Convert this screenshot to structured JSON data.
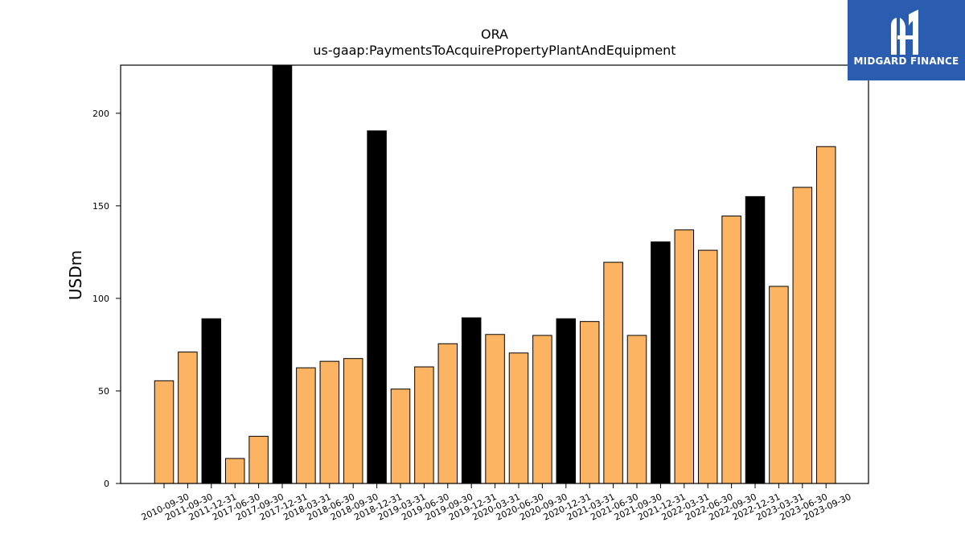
{
  "chart_data": {
    "type": "bar",
    "title": "ORA",
    "subtitle": "us-gaap:PaymentsToAcquirePropertyPlantAndEquipment",
    "xlabel": "",
    "ylabel": "USDm",
    "ylim": [
      0,
      226
    ],
    "yticks": [
      0,
      50,
      100,
      150,
      200
    ],
    "grid": false,
    "categories": [
      "2010-09-30",
      "2011-09-30",
      "2011-12-31",
      "2017-06-30",
      "2017-09-30",
      "2017-12-31",
      "2018-03-31",
      "2018-06-30",
      "2018-09-30",
      "2018-12-31",
      "2019-03-31",
      "2019-06-30",
      "2019-09-30",
      "2019-12-31",
      "2020-03-31",
      "2020-06-30",
      "2020-09-30",
      "2020-12-31",
      "2021-03-31",
      "2021-06-30",
      "2021-09-30",
      "2021-12-31",
      "2022-03-31",
      "2022-06-30",
      "2022-09-30",
      "2022-12-31",
      "2023-03-31",
      "2023-06-30",
      "2023-09-30"
    ],
    "values": [
      55.5,
      71,
      89,
      13.5,
      25.5,
      226,
      62.5,
      66,
      67.5,
      190.5,
      51,
      63,
      75.5,
      89.5,
      80.5,
      70.5,
      80,
      89,
      87.5,
      119.5,
      80,
      130.5,
      137,
      126,
      144.5,
      155,
      106.5,
      160,
      182
    ],
    "colors": [
      "#fdb462",
      "#fdb462",
      "#000000",
      "#fdb462",
      "#fdb462",
      "#000000",
      "#fdb462",
      "#fdb462",
      "#fdb462",
      "#000000",
      "#fdb462",
      "#fdb462",
      "#fdb462",
      "#000000",
      "#fdb462",
      "#fdb462",
      "#fdb462",
      "#000000",
      "#fdb462",
      "#fdb462",
      "#fdb462",
      "#000000",
      "#fdb462",
      "#fdb462",
      "#fdb462",
      "#000000",
      "#fdb462",
      "#fdb462",
      "#fdb462"
    ]
  },
  "logo": {
    "text": "MIDGARD FINANCE",
    "icon": "midgard-logo-icon",
    "background": "#2a5db0"
  }
}
